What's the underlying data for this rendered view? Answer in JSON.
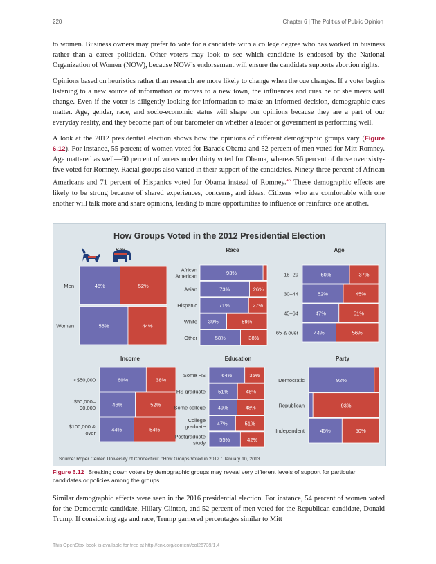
{
  "header": {
    "page_number": "220",
    "chapter": "Chapter 6 | The Politics of Public Opinion"
  },
  "paragraphs": {
    "p1": "to women. Business owners may prefer to vote for a candidate with a college degree who has worked in business rather than a career politician. Other voters may look to see which candidate is endorsed by the National Organization of Women (NOW), because NOW’s endorsement will ensure the candidate supports abortion rights.",
    "p2": "Opinions based on heuristics rather than research are more likely to change when the cue changes. If a voter begins listening to a new source of information or moves to a new town, the influences and cues he or she meets will change. Even if the voter is diligently looking for information to make an informed decision, demographic cues matter. Age, gender, race, and socio-economic status will shape our opinions because they are a part of our everyday reality, and they become part of our barometer on whether a leader or government is performing well.",
    "p3_a": "A look at the 2012 presidential election shows how the opinions of different demographic groups vary (",
    "p3_ref": "Figure 6.12",
    "p3_b": "). For instance, 55 percent of women voted for Barack Obama and 52 percent of men voted for Mitt Romney. Age mattered as well—60 percent of voters under thirty voted for Obama, whereas 56 percent of those over sixty-five voted for Romney. Racial groups also varied in their support of the candidates. Ninety-three percent of African Americans and 71 percent of Hispanics voted for Obama instead of Romney.",
    "p3_note": "46",
    "p3_c": " These demographic effects are likely to be strong because of shared experiences, concerns, and ideas. Citizens who are comfortable with one another will talk more and share opinions, leading to more opportunities to influence or reinforce one another.",
    "p4": "Similar demographic effects were seen in the 2016 presidential election. For instance, 54 percent of women voted for the Democratic candidate, Hillary Clinton, and 52 percent of men voted for the Republican candidate, Donald Trump. If considering age and race, Trump garnered percentages similar to Mitt"
  },
  "caption": {
    "label": "Figure 6.12",
    "text": "Breaking down voters by demographic groups may reveal very different levels of support for particular candidates or policies among the groups."
  },
  "footer": "This OpenStax book is available for free at http://cnx.org/content/col26739/1.4",
  "colors": {
    "dem": "#6e6db2",
    "rep": "#c9473c",
    "bg": "#dde5ea",
    "caption_label": "#b2183b"
  },
  "icons": [
    "donkey-icon",
    "elephant-icon"
  ],
  "chart_data": {
    "type": "bar",
    "title": "How Groups Voted in the 2012 Presidential Election",
    "source": "Source: Roper Center, University of Connecticut. “How Groups Voted in 2012.” January 10, 2013.",
    "panels": [
      {
        "name": "Sex",
        "groups": [
          {
            "label": "Men",
            "dem": 45,
            "rep": 52
          },
          {
            "label": "Women",
            "dem": 55,
            "rep": 44
          }
        ]
      },
      {
        "name": "Race",
        "groups": [
          {
            "label": "African American",
            "dem": 93,
            "rep": 6,
            "rep_label": ""
          },
          {
            "label": "Asian",
            "dem": 73,
            "rep": 26
          },
          {
            "label": "Hispanic",
            "dem": 71,
            "rep": 27
          },
          {
            "label": "White",
            "dem": 39,
            "rep": 59
          },
          {
            "label": "Other",
            "dem": 58,
            "rep": 38
          }
        ]
      },
      {
        "name": "Age",
        "groups": [
          {
            "label": "18–29",
            "dem": 60,
            "rep": 37
          },
          {
            "label": "30–44",
            "dem": 52,
            "rep": 45
          },
          {
            "label": "45–64",
            "dem": 47,
            "rep": 51
          },
          {
            "label": "65 & over",
            "dem": 44,
            "rep": 56
          }
        ]
      },
      {
        "name": "Income",
        "groups": [
          {
            "label": "<$50,000",
            "dem": 60,
            "rep": 38
          },
          {
            "label": "$50,000–90,000",
            "dem": 46,
            "rep": 52
          },
          {
            "label": "$100,000 & over",
            "dem": 44,
            "rep": 54
          }
        ]
      },
      {
        "name": "Education",
        "groups": [
          {
            "label": "Some HS",
            "dem": 64,
            "rep": 35
          },
          {
            "label": "HS graduate",
            "dem": 51,
            "rep": 48
          },
          {
            "label": "Some college",
            "dem": 49,
            "rep": 48
          },
          {
            "label": "College graduate",
            "dem": 47,
            "rep": 51
          },
          {
            "label": "Postgraduate study",
            "dem": 55,
            "rep": 42
          }
        ]
      },
      {
        "name": "Party",
        "groups": [
          {
            "label": "Democratic",
            "dem": 92,
            "rep": 7,
            "rep_label": ""
          },
          {
            "label": "Republican",
            "dem": 6,
            "rep": 93,
            "dem_label": ""
          },
          {
            "label": "Independent",
            "dem": 45,
            "rep": 50
          }
        ]
      }
    ]
  }
}
